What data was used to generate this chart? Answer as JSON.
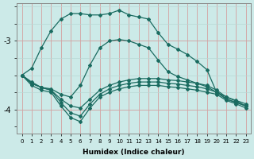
{
  "xlabel": "Humidex (Indice chaleur)",
  "bg_color": "#cceae8",
  "line_color": "#1a6b60",
  "xlim": [
    -0.5,
    23.5
  ],
  "ylim": [
    -4.35,
    -2.45
  ],
  "yticks": [
    -4,
    -3
  ],
  "xticks": [
    0,
    1,
    2,
    3,
    4,
    5,
    6,
    7,
    8,
    9,
    10,
    11,
    12,
    13,
    14,
    15,
    16,
    17,
    18,
    19,
    20,
    21,
    22,
    23
  ],
  "line_big_x": [
    0,
    1,
    2,
    3,
    4,
    5,
    6,
    7,
    8,
    9,
    10,
    11,
    12,
    13,
    14,
    15,
    16,
    17,
    18,
    19,
    20,
    21,
    22,
    23
  ],
  "line_big_y": [
    -3.5,
    -3.4,
    -3.1,
    -2.85,
    -2.68,
    -2.6,
    -2.6,
    -2.62,
    -2.62,
    -2.6,
    -2.55,
    -2.62,
    -2.65,
    -2.68,
    -2.88,
    -3.05,
    -3.12,
    -3.2,
    -3.3,
    -3.42,
    -3.75,
    -3.85,
    -3.9,
    -3.95
  ],
  "line_sec_x": [
    0,
    1,
    2,
    3,
    4,
    5,
    6,
    7,
    8,
    9,
    10,
    11,
    12,
    13,
    14,
    15,
    16,
    17,
    18,
    19,
    20,
    21,
    22,
    23
  ],
  "line_sec_y": [
    -3.5,
    -3.6,
    -3.68,
    -3.7,
    -3.78,
    -3.82,
    -3.65,
    -3.35,
    -3.1,
    -3.0,
    -2.98,
    -3.0,
    -3.05,
    -3.1,
    -3.28,
    -3.45,
    -3.52,
    -3.57,
    -3.62,
    -3.67,
    -3.75,
    -3.82,
    -3.87,
    -3.92
  ],
  "line_flat1_x": [
    0,
    1,
    2,
    3,
    4,
    5,
    6,
    7,
    8,
    9,
    10,
    11,
    12,
    13,
    14,
    15,
    16,
    17,
    18,
    19,
    20,
    21,
    22,
    23
  ],
  "line_flat1_y": [
    -3.5,
    -3.62,
    -3.68,
    -3.72,
    -3.85,
    -3.95,
    -3.98,
    -3.85,
    -3.72,
    -3.65,
    -3.6,
    -3.57,
    -3.55,
    -3.55,
    -3.55,
    -3.57,
    -3.58,
    -3.6,
    -3.62,
    -3.65,
    -3.72,
    -3.82,
    -3.88,
    -3.95
  ],
  "line_flat2_x": [
    0,
    1,
    2,
    3,
    4,
    5,
    6,
    7,
    8,
    9,
    10,
    11,
    12,
    13,
    14,
    15,
    16,
    17,
    18,
    19,
    20,
    21,
    22,
    23
  ],
  "line_flat2_y": [
    -3.5,
    -3.62,
    -3.68,
    -3.72,
    -3.9,
    -4.05,
    -4.1,
    -3.92,
    -3.78,
    -3.7,
    -3.65,
    -3.62,
    -3.6,
    -3.6,
    -3.6,
    -3.62,
    -3.63,
    -3.65,
    -3.67,
    -3.7,
    -3.75,
    -3.85,
    -3.9,
    -3.95
  ],
  "line_flat3_x": [
    0,
    1,
    2,
    3,
    4,
    5,
    6,
    7,
    8,
    9,
    10,
    11,
    12,
    13,
    14,
    15,
    16,
    17,
    18,
    19,
    20,
    21,
    22,
    23
  ],
  "line_flat3_y": [
    -3.5,
    -3.65,
    -3.72,
    -3.75,
    -3.95,
    -4.12,
    -4.18,
    -3.98,
    -3.82,
    -3.75,
    -3.7,
    -3.67,
    -3.65,
    -3.65,
    -3.65,
    -3.67,
    -3.68,
    -3.7,
    -3.72,
    -3.75,
    -3.78,
    -3.87,
    -3.92,
    -3.98
  ]
}
